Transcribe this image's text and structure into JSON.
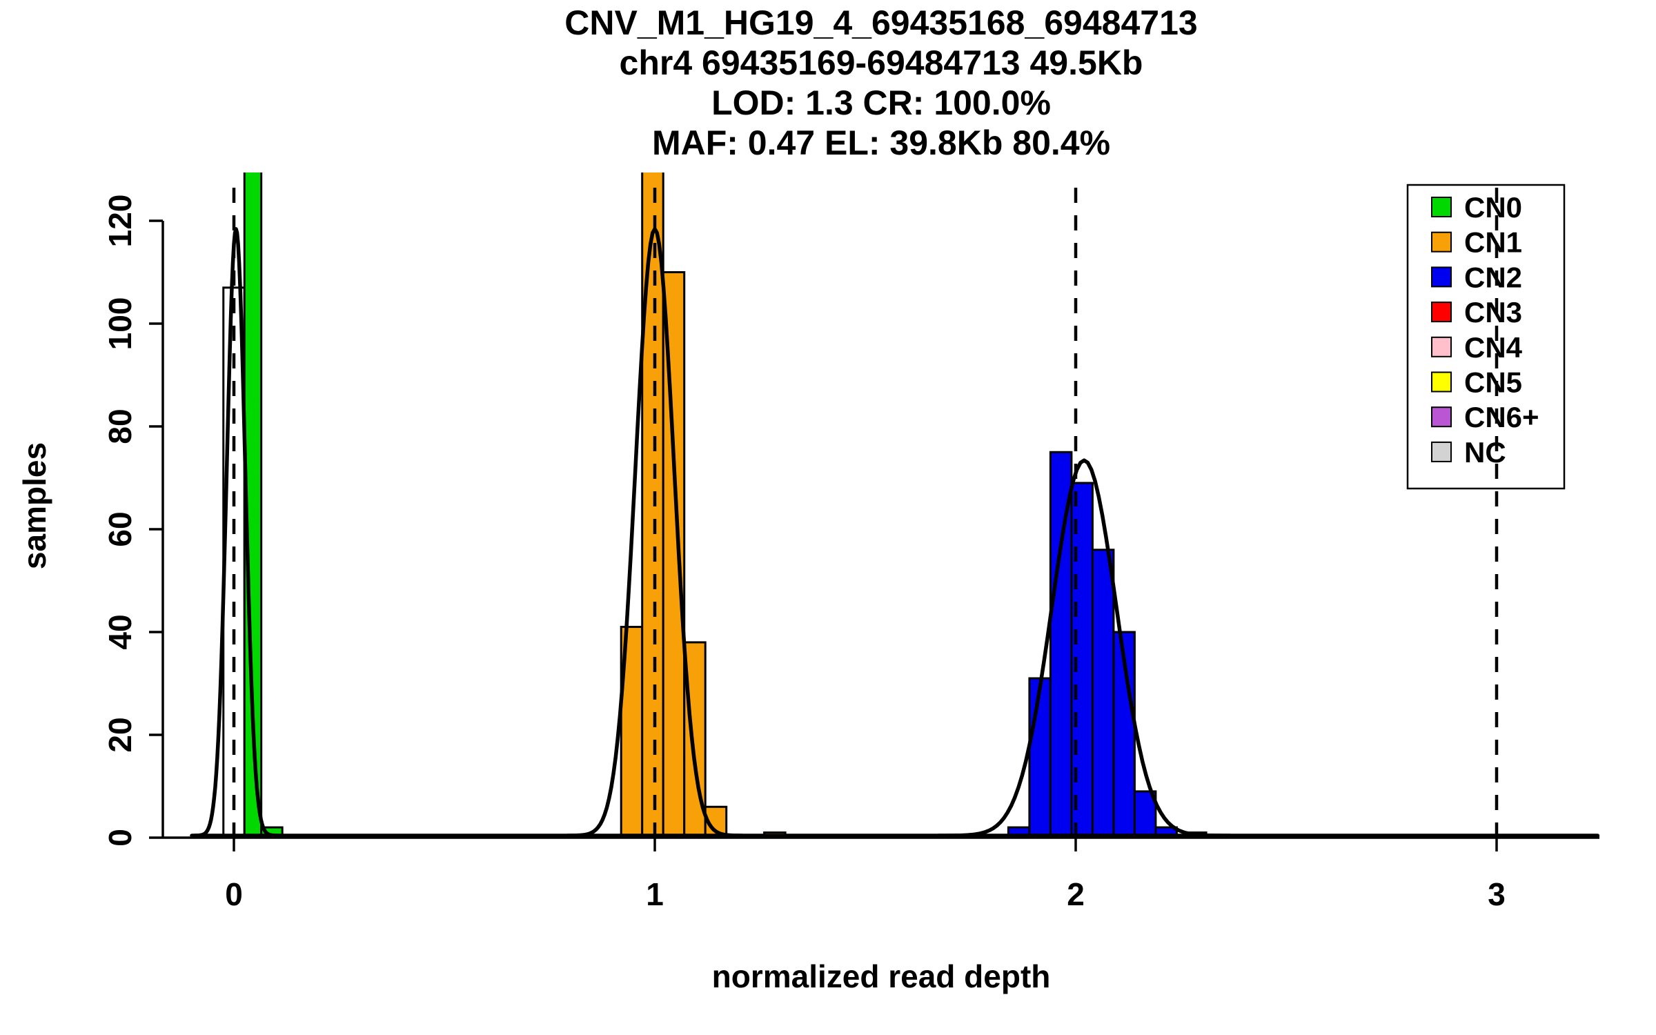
{
  "chart_data": {
    "type": "bar",
    "title": "CNV_M1_HG19_4_69435168_69484713",
    "title_lines": [
      "CNV_M1_HG19_4_69435168_69484713",
      "chr4 69435169-69484713 49.5Kb",
      "LOD: 1.3 CR: 100.0%",
      "MAF: 0.47 EL: 39.8Kb 80.4%"
    ],
    "xlabel": "normalized read depth",
    "ylabel": "samples",
    "xlim": [
      -0.16,
      3.3
    ],
    "ylim": [
      0,
      130
    ],
    "xticks": [
      0,
      1,
      2,
      3
    ],
    "yticks": [
      0,
      20,
      40,
      60,
      80,
      100,
      120
    ],
    "grid": false,
    "legend_position": "top-right",
    "dashed_guides_x": [
      0,
      1,
      2,
      3
    ],
    "colors": {
      "CN0": "#00D800",
      "CN1": "#F8A008",
      "CN2": "#0000F0",
      "CN3": "#FF0000",
      "CN4": "#FFC0CB",
      "CN5": "#FFFF00",
      "CN6plus": "#BA55D3",
      "NC": "#D3D3D3",
      "uncolored": "#FFFFFF"
    },
    "legend_items": [
      {
        "label": "CN0",
        "color_key": "CN0"
      },
      {
        "label": "CN1",
        "color_key": "CN1"
      },
      {
        "label": "CN2",
        "color_key": "CN2"
      },
      {
        "label": "CN3",
        "color_key": "CN3"
      },
      {
        "label": "CN4",
        "color_key": "CN4"
      },
      {
        "label": "CN5",
        "color_key": "CN5"
      },
      {
        "label": "CN6+",
        "color_key": "CN6plus"
      },
      {
        "label": "NC",
        "color_key": "NC"
      }
    ],
    "bars": [
      {
        "x0": -0.025,
        "x1": 0.025,
        "height": 107,
        "color_key": "uncolored"
      },
      {
        "x0": 0.025,
        "x1": 0.065,
        "height": 130,
        "color_key": "CN0",
        "clipped": true
      },
      {
        "x0": 0.065,
        "x1": 0.115,
        "height": 2,
        "color_key": "CN0"
      },
      {
        "x0": 0.92,
        "x1": 0.97,
        "height": 41,
        "color_key": "CN1"
      },
      {
        "x0": 0.97,
        "x1": 1.02,
        "height": 130,
        "color_key": "CN1",
        "clipped": true
      },
      {
        "x0": 1.02,
        "x1": 1.07,
        "height": 110,
        "color_key": "CN1"
      },
      {
        "x0": 1.07,
        "x1": 1.12,
        "height": 38,
        "color_key": "CN1"
      },
      {
        "x0": 1.12,
        "x1": 1.17,
        "height": 6,
        "color_key": "CN1"
      },
      {
        "x0": 1.26,
        "x1": 1.31,
        "height": 1,
        "color_key": "CN1"
      },
      {
        "x0": 1.84,
        "x1": 1.89,
        "height": 2,
        "color_key": "CN2"
      },
      {
        "x0": 1.89,
        "x1": 1.94,
        "height": 31,
        "color_key": "CN2"
      },
      {
        "x0": 1.94,
        "x1": 1.99,
        "height": 75,
        "color_key": "CN2"
      },
      {
        "x0": 1.99,
        "x1": 2.04,
        "height": 69,
        "color_key": "CN2"
      },
      {
        "x0": 2.04,
        "x1": 2.09,
        "height": 56,
        "color_key": "CN2"
      },
      {
        "x0": 2.09,
        "x1": 2.14,
        "height": 40,
        "color_key": "CN2"
      },
      {
        "x0": 2.14,
        "x1": 2.19,
        "height": 9,
        "color_key": "CN2"
      },
      {
        "x0": 2.19,
        "x1": 2.24,
        "height": 2,
        "color_key": "CN2"
      },
      {
        "x0": 2.26,
        "x1": 2.31,
        "height": 1,
        "color_key": "CN2"
      }
    ],
    "density_curves": [
      {
        "mean": 0.005,
        "sd": 0.022,
        "peak": 118
      },
      {
        "mean": 1.0,
        "sd": 0.046,
        "peak": 118
      },
      {
        "mean": 2.02,
        "sd": 0.077,
        "peak": 73
      }
    ],
    "baseline_level": 0.4
  }
}
